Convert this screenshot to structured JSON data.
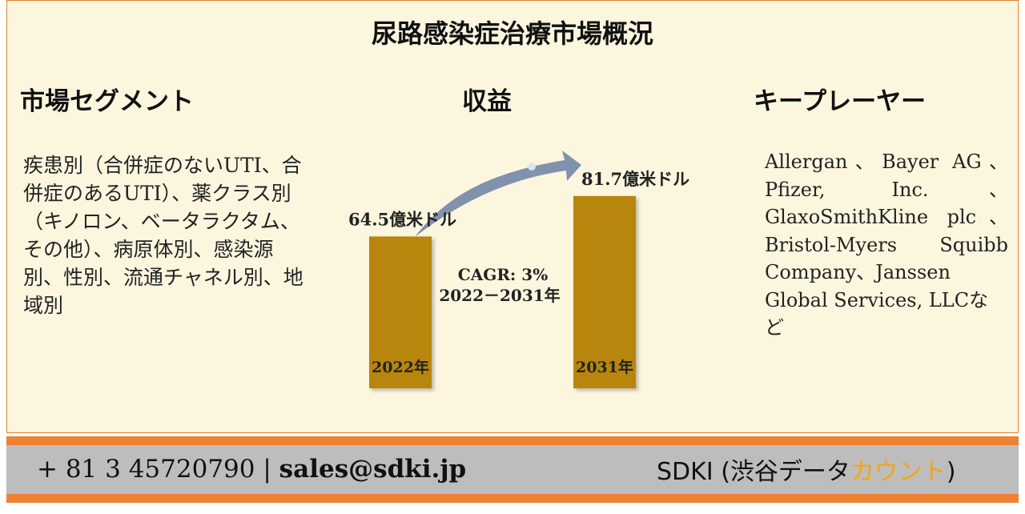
{
  "title": "尿路感染症治療市場概況",
  "sections": {
    "segments_heading": "市場セグメント",
    "revenue_heading": "収益",
    "players_heading": "キープレーヤー"
  },
  "segments_text": "疾患別（合併症のないUTI、合併症のあるUTI）、薬クラス別（キノロン、ベータラクタム、その他）、病原体別、感染源別、性別、流通チャネル別、地域別",
  "players_lines": [
    "Allergan、Bayer AG、",
    "Pfizer, Inc.、",
    "GlaxoSmithKline plc、",
    "Bristol-Myers Squibb",
    "Company、Janssen",
    "Global Services, LLCな",
    "ど"
  ],
  "chart_data": {
    "type": "bar",
    "categories": [
      "2022年",
      "2031年"
    ],
    "values": [
      64.5,
      81.7
    ],
    "value_labels": [
      "64.5億米ドル",
      "81.7億米ドル"
    ],
    "unit": "億米ドル",
    "annotation": [
      "CAGR: 3%",
      "2022－2031年"
    ],
    "bar_color": "#b8860b"
  },
  "footer": {
    "phone": "+ 81 3 45720790",
    "separator": "|",
    "email": "sales@sdki.jp",
    "brand_main": "SDKI (渋谷データ",
    "brand_accent": "カウント",
    "brand_end": ")"
  },
  "colors": {
    "border": "#e87f2e",
    "panel": "#fdf6df",
    "footer_band": "#bdbdbd",
    "accent_orange": "#f3a516",
    "arrow": "#8092ad"
  }
}
